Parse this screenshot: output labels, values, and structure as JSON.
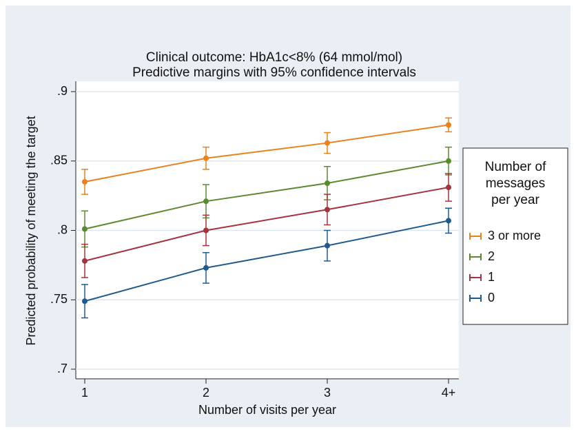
{
  "chart_data": {
    "type": "line",
    "title": "Clinical outcome: HbA1c<8% (64 mmol/mol)",
    "subtitle": "Predictive margins with 95% confidence intervals",
    "x_label": "Number of visits per year",
    "y_label": "Predicted probability of meeting the target",
    "categories": [
      "1",
      "2",
      "3",
      "4+"
    ],
    "ylim": [
      0.7,
      0.9
    ],
    "yticks": [
      {
        "value": 0.7,
        "label": ".7"
      },
      {
        "value": 0.75,
        "label": ".75"
      },
      {
        "value": 0.8,
        "label": ".8"
      },
      {
        "value": 0.85,
        "label": ".85"
      },
      {
        "value": 0.9,
        "label": ".9"
      }
    ],
    "grid": true,
    "legend_title": [
      "Number of",
      "messages",
      "per year"
    ],
    "series": [
      {
        "name": "3 or more",
        "color": "#e8821e",
        "values": [
          0.835,
          0.852,
          0.863,
          0.876
        ],
        "errors": [
          0.009,
          0.008,
          0.0075,
          0.005
        ]
      },
      {
        "name": "2",
        "color": "#5b8a2e",
        "values": [
          0.801,
          0.821,
          0.834,
          0.85
        ],
        "errors": [
          0.013,
          0.012,
          0.012,
          0.01
        ]
      },
      {
        "name": "1",
        "color": "#a3343d",
        "values": [
          0.778,
          0.8,
          0.815,
          0.831
        ],
        "errors": [
          0.012,
          0.011,
          0.011,
          0.01
        ]
      },
      {
        "name": "0",
        "color": "#1e5a8e",
        "values": [
          0.749,
          0.773,
          0.789,
          0.807
        ],
        "errors": [
          0.012,
          0.011,
          0.011,
          0.009
        ]
      }
    ]
  }
}
